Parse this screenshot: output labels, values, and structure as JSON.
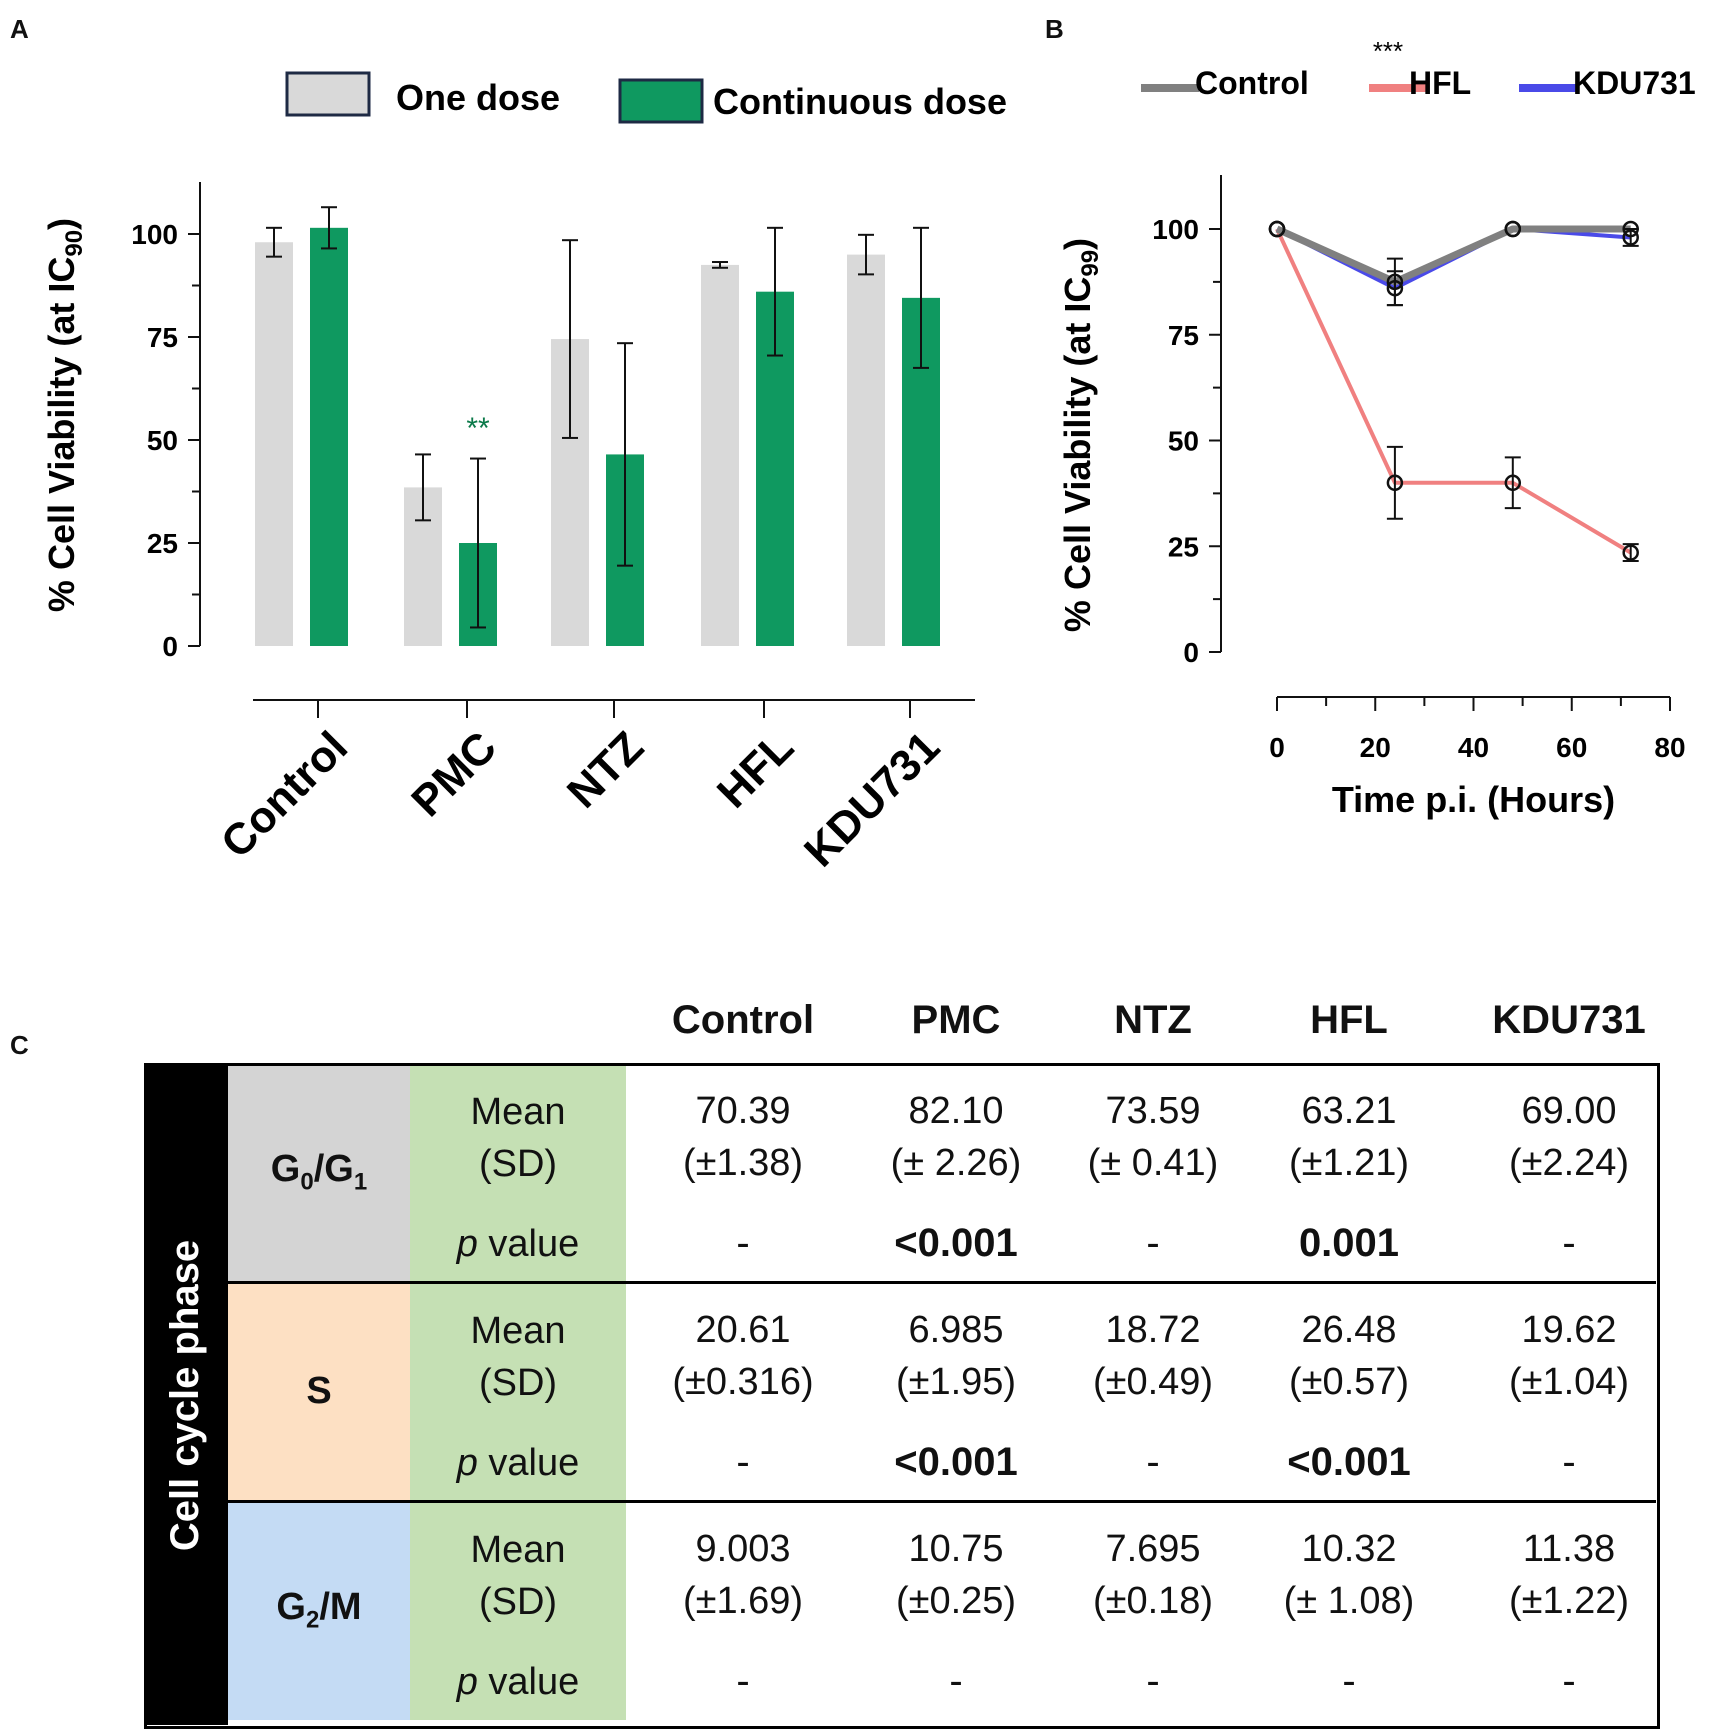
{
  "panel_labels": {
    "a": "A",
    "b": "B",
    "c": "C"
  },
  "colors": {
    "one_dose": "#d9d9d9",
    "continuous_dose": "#0f9960",
    "control_line": "#808080",
    "hfl_line": "#f08080",
    "kdu731_line": "#4a4ae8",
    "sig_green": "#0c7a4a",
    "g0g1_bg": "#d4d4d4",
    "s_bg": "#fde0c3",
    "g2m_bg": "#c4dbf4",
    "stat_bg": "#c5e0b4"
  },
  "chart_data": [
    {
      "type": "bar",
      "title": "",
      "ylabel": "% Cell Viability (at IC90)",
      "ylabel_main": "% Cell Viability (at IC",
      "ylabel_sub": "90",
      "ylabel_close": ")",
      "xlabel": "",
      "ylim": [
        0,
        110
      ],
      "yticks": [
        "0",
        "25",
        "50",
        "75",
        "100"
      ],
      "categories": [
        "Control",
        "PMC",
        "NTZ",
        "HFL",
        "KDU731"
      ],
      "series": [
        {
          "name": "One dose",
          "values": [
            98,
            38.5,
            74.5,
            92.5,
            95
          ],
          "errors": [
            3.5,
            8,
            24,
            0.7,
            4.8
          ]
        },
        {
          "name": "Continuous dose",
          "values": [
            101.5,
            25,
            46.5,
            86,
            84.5
          ],
          "errors": [
            5,
            20.5,
            27,
            15.5,
            17
          ]
        }
      ],
      "annotations": [
        {
          "category": "PMC",
          "series": "Continuous dose",
          "text": "**"
        }
      ],
      "legend": [
        "One dose",
        "Continuous dose"
      ]
    },
    {
      "type": "line",
      "title": "",
      "xlabel": "Time p.i. (Hours)",
      "ylabel": "% Cell Viability (at IC99)",
      "ylabel_main": "% Cell Viability (at IC",
      "ylabel_sub": "99",
      "ylabel_close": ")",
      "xlim": [
        0,
        80
      ],
      "ylim": [
        0,
        110
      ],
      "xticks": [
        "0",
        "20",
        "40",
        "60",
        "80"
      ],
      "yticks": [
        "0",
        "25",
        "50",
        "75",
        "100"
      ],
      "x": [
        0,
        24,
        48,
        72
      ],
      "series": [
        {
          "name": "Control",
          "values": [
            100,
            87.5,
            100,
            100
          ],
          "errors": [
            0,
            5.5,
            0,
            0
          ]
        },
        {
          "name": "HFL",
          "values": [
            100,
            40,
            40,
            23.5
          ],
          "errors": [
            0,
            8.5,
            6,
            2
          ]
        },
        {
          "name": "KDU731",
          "values": [
            100,
            86,
            100,
            98
          ],
          "errors": [
            0,
            4,
            0,
            2
          ]
        }
      ],
      "legend": [
        "Control",
        "HFL",
        "KDU731"
      ],
      "annotations": [
        {
          "series": "HFL",
          "text": "***"
        }
      ]
    },
    {
      "type": "table",
      "side_label": "Cell cycle phase",
      "columns": [
        "Control",
        "PMC",
        "NTZ",
        "HFL",
        "KDU731"
      ],
      "stat_labels": {
        "mean": "Mean",
        "sd": "(SD)",
        "p_italic": "p",
        "p_rest": " value"
      },
      "rows": [
        {
          "phase": "G0/G1",
          "phase_parts": [
            "G",
            "0",
            "/G",
            "1"
          ],
          "means": [
            "70.39",
            "82.10",
            "73.59",
            "63.21",
            "69.00"
          ],
          "sds": [
            "(±1.38)",
            "(± 2.26)",
            "(± 0.41)",
            "(±1.21)",
            "(±2.24)"
          ],
          "pvalues": [
            "-",
            "<0.001",
            "-",
            "0.001",
            "-"
          ],
          "p_bold": [
            false,
            true,
            false,
            true,
            false
          ]
        },
        {
          "phase": "S",
          "phase_parts": [
            "S",
            "",
            "",
            ""
          ],
          "means": [
            "20.61",
            "6.985",
            "18.72",
            "26.48",
            "19.62"
          ],
          "sds": [
            "(±0.316)",
            "(±1.95)",
            "(±0.49)",
            "(±0.57)",
            "(±1.04)"
          ],
          "pvalues": [
            "-",
            "<0.001",
            "-",
            "<0.001",
            "-"
          ],
          "p_bold": [
            false,
            true,
            false,
            true,
            false
          ]
        },
        {
          "phase": "G2/M",
          "phase_parts": [
            "G",
            "2",
            "/M",
            ""
          ],
          "means": [
            "9.003",
            "10.75",
            "7.695",
            "10.32",
            "11.38"
          ],
          "sds": [
            "(±1.69)",
            "(±0.25)",
            "(±0.18)",
            "(± 1.08)",
            "(±1.22)"
          ],
          "pvalues": [
            "-",
            "-",
            "-",
            "-",
            "-"
          ],
          "p_bold": [
            false,
            false,
            false,
            false,
            false
          ]
        }
      ]
    }
  ]
}
